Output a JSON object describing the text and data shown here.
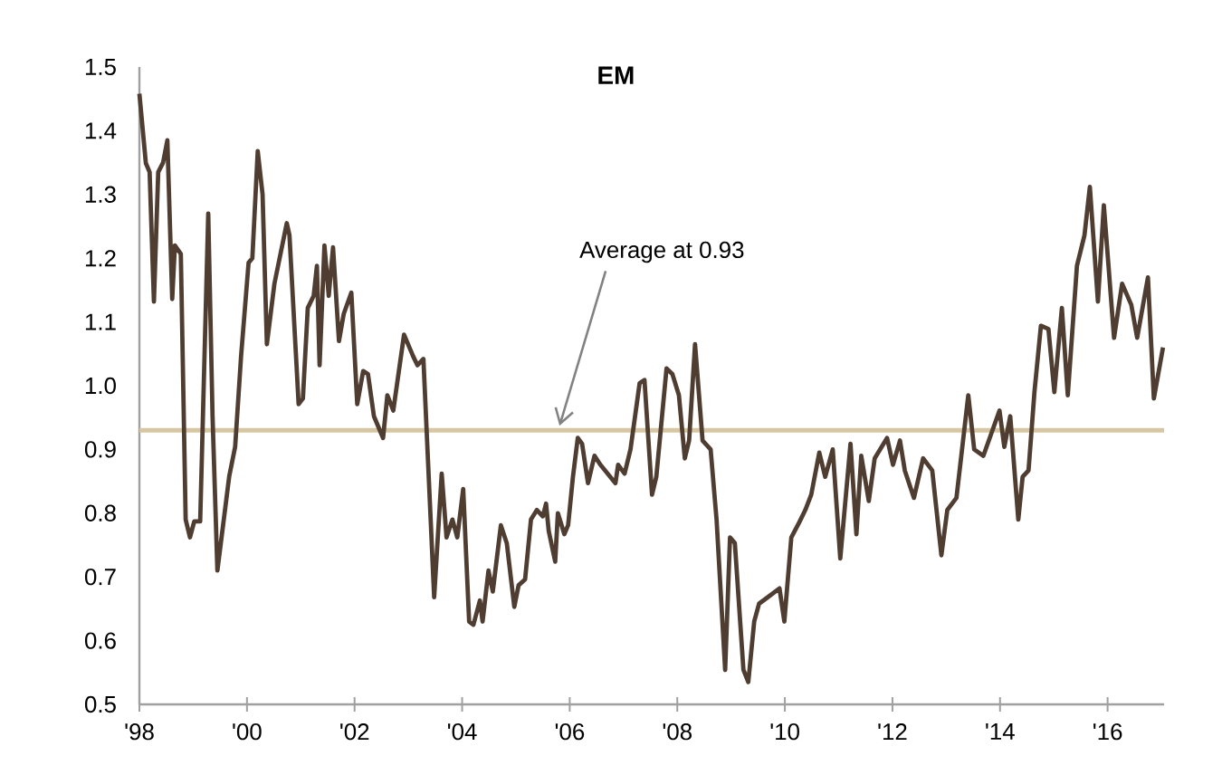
{
  "chart_data": {
    "type": "line",
    "title": "EM",
    "x": [
      1998.0,
      1998.12,
      1998.19,
      1998.27,
      1998.35,
      1998.44,
      1998.52,
      1998.61,
      1998.66,
      1998.77,
      1998.86,
      1998.94,
      1999.02,
      1999.13,
      1999.28,
      1999.36,
      1999.45,
      1999.67,
      1999.78,
      1999.89,
      2000.03,
      2000.1,
      2000.2,
      2000.29,
      2000.37,
      2000.51,
      2000.74,
      2000.79,
      2000.96,
      2001.04,
      2001.13,
      2001.24,
      2001.3,
      2001.35,
      2001.44,
      2001.52,
      2001.6,
      2001.71,
      2001.8,
      2001.94,
      2002.05,
      2002.16,
      2002.25,
      2002.36,
      2002.53,
      2002.61,
      2002.72,
      2002.92,
      2003.09,
      2003.17,
      2003.28,
      2003.48,
      2003.62,
      2003.71,
      2003.82,
      2003.91,
      2004.02,
      2004.13,
      2004.21,
      2004.33,
      2004.38,
      2004.49,
      2004.57,
      2004.72,
      2004.83,
      2004.97,
      2005.05,
      2005.17,
      2005.28,
      2005.39,
      2005.5,
      2005.56,
      2005.61,
      2005.73,
      2005.78,
      2005.9,
      2005.97,
      2006.06,
      2006.15,
      2006.23,
      2006.34,
      2006.46,
      2006.57,
      2006.85,
      2006.9,
      2007.02,
      2007.13,
      2007.3,
      2007.39,
      2007.53,
      2007.61,
      2007.8,
      2007.91,
      2008.03,
      2008.14,
      2008.22,
      2008.33,
      2008.47,
      2008.62,
      2008.73,
      2008.89,
      2008.98,
      2009.07,
      2009.23,
      2009.32,
      2009.43,
      2009.52,
      2009.68,
      2009.9,
      2009.99,
      2010.12,
      2010.27,
      2010.38,
      2010.49,
      2010.64,
      2010.75,
      2010.89,
      2011.03,
      2011.22,
      2011.33,
      2011.42,
      2011.56,
      2011.67,
      2011.9,
      2012.01,
      2012.14,
      2012.23,
      2012.4,
      2012.57,
      2012.74,
      2012.91,
      2013.02,
      2013.19,
      2013.41,
      2013.52,
      2013.69,
      2013.99,
      2014.08,
      2014.19,
      2014.34,
      2014.42,
      2014.53,
      2014.64,
      2014.76,
      2014.9,
      2015.01,
      2015.15,
      2015.26,
      2015.43,
      2015.57,
      2015.67,
      2015.82,
      2015.93,
      2016.12,
      2016.27,
      2016.44,
      2016.55,
      2016.75,
      2016.86,
      2017.03
    ],
    "series": [
      {
        "color": "#4e3d30",
        "values": [
          1.458,
          1.349,
          1.335,
          1.132,
          1.335,
          1.35,
          1.385,
          1.136,
          1.22,
          1.207,
          0.79,
          0.762,
          0.787,
          0.787,
          1.27,
          0.952,
          0.71,
          0.858,
          0.904,
          1.046,
          1.193,
          1.2,
          1.368,
          1.3,
          1.065,
          1.16,
          1.255,
          1.236,
          0.971,
          0.98,
          1.122,
          1.141,
          1.188,
          1.032,
          1.22,
          1.141,
          1.217,
          1.07,
          1.113,
          1.146,
          0.971,
          1.023,
          1.018,
          0.952,
          0.918,
          0.985,
          0.961,
          1.08,
          1.046,
          1.032,
          1.042,
          0.668,
          0.862,
          0.762,
          0.79,
          0.762,
          0.838,
          0.63,
          0.625,
          0.663,
          0.63,
          0.71,
          0.677,
          0.781,
          0.753,
          0.653,
          0.687,
          0.696,
          0.79,
          0.805,
          0.795,
          0.815,
          0.772,
          0.724,
          0.8,
          0.767,
          0.781,
          0.857,
          0.918,
          0.909,
          0.847,
          0.89,
          0.876,
          0.847,
          0.876,
          0.862,
          0.9,
          1.004,
          1.009,
          0.829,
          0.857,
          1.027,
          1.018,
          0.985,
          0.886,
          0.914,
          1.065,
          0.914,
          0.9,
          0.79,
          0.554,
          0.762,
          0.753,
          0.554,
          0.535,
          0.63,
          0.658,
          0.668,
          0.682,
          0.63,
          0.762,
          0.786,
          0.805,
          0.829,
          0.895,
          0.857,
          0.9,
          0.729,
          0.909,
          0.767,
          0.89,
          0.819,
          0.886,
          0.918,
          0.876,
          0.914,
          0.867,
          0.824,
          0.886,
          0.867,
          0.734,
          0.805,
          0.824,
          0.985,
          0.9,
          0.89,
          0.961,
          0.904,
          0.952,
          0.79,
          0.857,
          0.867,
          0.99,
          1.094,
          1.089,
          0.99,
          1.122,
          0.985,
          1.188,
          1.236,
          1.312,
          1.132,
          1.283,
          1.075,
          1.16,
          1.127,
          1.075,
          1.17,
          0.98,
          1.06
        ]
      }
    ],
    "xlim": [
      1998,
      2017.05
    ],
    "ylim": [
      0.5,
      1.5
    ],
    "xticks": [
      {
        "value": 1998,
        "label": "'98"
      },
      {
        "value": 2000,
        "label": "'00"
      },
      {
        "value": 2002,
        "label": "'02"
      },
      {
        "value": 2004,
        "label": "'04"
      },
      {
        "value": 2006,
        "label": "'06"
      },
      {
        "value": 2008,
        "label": "'08"
      },
      {
        "value": 2010,
        "label": "'10"
      },
      {
        "value": 2012,
        "label": "'12"
      },
      {
        "value": 2014,
        "label": "'14"
      },
      {
        "value": 2016,
        "label": "'16"
      }
    ],
    "yticks": [
      0.5,
      0.6,
      0.7,
      0.8,
      0.9,
      {
        "value": 1,
        "label": "1.0"
      },
      1.1,
      1.2,
      1.3,
      1.4,
      1.5
    ],
    "ref_lines": [
      {
        "axis": "y",
        "value": 0.93,
        "label": "Average at 0.93",
        "color": "#d6c6a2"
      }
    ],
    "grid": false
  }
}
